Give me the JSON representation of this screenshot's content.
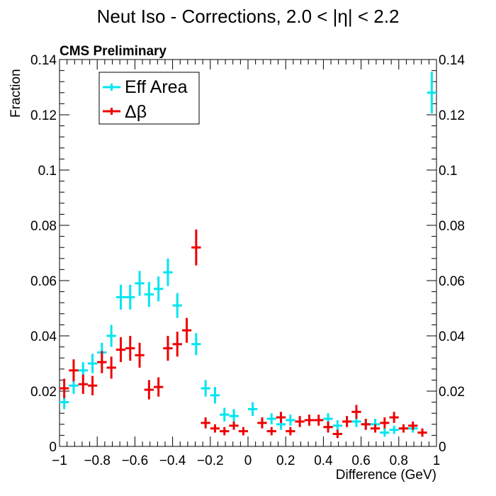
{
  "chart_data": {
    "type": "scatter",
    "title": "Neut Iso - Corrections, 2.0 < |η| < 2.2",
    "subtitle": "CMS Preliminary",
    "xlabel": "Difference (GeV)",
    "ylabel": "Fraction",
    "xlim": [
      -1,
      1
    ],
    "ylim": [
      0,
      0.14
    ],
    "bin_width": 0.05,
    "x_ticks": [
      -1,
      -0.8,
      -0.6,
      -0.4,
      -0.2,
      0,
      0.2,
      0.4,
      0.6,
      0.8,
      1
    ],
    "x_tick_labels": [
      "−1",
      "−0.8",
      "−0.6",
      "−0.4",
      "−0.2",
      "0",
      "0.2",
      "0.4",
      "0.6",
      "0.8",
      "1"
    ],
    "y_ticks": [
      0,
      0.02,
      0.04,
      0.06,
      0.08,
      0.1,
      0.12,
      0.14
    ],
    "y_tick_labels": [
      "0",
      "0.02",
      "0.04",
      "0.06",
      "0.08",
      "0.1",
      "0.12",
      "0.14"
    ],
    "legend_position": "top-left",
    "series": [
      {
        "name": "Eff Area",
        "color": "#00e5f0",
        "x": [
          -0.975,
          -0.925,
          -0.875,
          -0.825,
          -0.775,
          -0.725,
          -0.675,
          -0.625,
          -0.575,
          -0.525,
          -0.475,
          -0.425,
          -0.375,
          -0.275,
          -0.225,
          -0.175,
          -0.125,
          -0.075,
          0.025,
          0.125,
          0.175,
          0.225,
          0.325,
          0.425,
          0.475,
          0.575,
          0.625,
          0.675,
          0.725,
          0.775,
          0.825,
          0.875,
          0.925,
          0.975
        ],
        "values": [
          0.016,
          0.022,
          0.0275,
          0.03,
          0.034,
          0.04,
          0.054,
          0.054,
          0.059,
          0.055,
          0.057,
          0.063,
          0.051,
          0.037,
          0.021,
          0.0185,
          0.0115,
          0.011,
          0.0135,
          0.01,
          0.008,
          0.0095,
          0.0095,
          0.01,
          0.0075,
          0.009,
          0.008,
          0.008,
          0.005,
          0.006,
          0.0065,
          0.0065,
          0.005,
          0.128
        ],
        "errors": [
          0.0025,
          0.003,
          0.003,
          0.0035,
          0.0035,
          0.004,
          0.0045,
          0.0045,
          0.0045,
          0.0045,
          0.0045,
          0.005,
          0.0045,
          0.004,
          0.003,
          0.003,
          0.0025,
          0.0025,
          0.0025,
          0.002,
          0.002,
          0.002,
          0.002,
          0.002,
          0.002,
          0.002,
          0.002,
          0.002,
          0.0015,
          0.0015,
          0.0015,
          0.0015,
          0.0015,
          0.0075
        ]
      },
      {
        "name": "Δβ",
        "color": "#ee0000",
        "x": [
          -0.975,
          -0.925,
          -0.875,
          -0.825,
          -0.775,
          -0.725,
          -0.675,
          -0.625,
          -0.575,
          -0.525,
          -0.475,
          -0.425,
          -0.375,
          -0.325,
          -0.275,
          -0.225,
          -0.175,
          -0.125,
          -0.075,
          -0.025,
          0.075,
          0.125,
          0.175,
          0.225,
          0.275,
          0.325,
          0.375,
          0.425,
          0.475,
          0.525,
          0.575,
          0.625,
          0.675,
          0.725,
          0.775,
          0.825,
          0.875,
          0.925
        ],
        "values": [
          0.021,
          0.0275,
          0.0225,
          0.022,
          0.0305,
          0.0285,
          0.035,
          0.0355,
          0.033,
          0.0205,
          0.0215,
          0.0355,
          0.037,
          0.042,
          0.072,
          0.0085,
          0.0065,
          0.0055,
          0.0075,
          0.0055,
          0.0085,
          0.0055,
          0.0105,
          0.0055,
          0.009,
          0.0095,
          0.0095,
          0.007,
          0.0045,
          0.009,
          0.0125,
          0.008,
          0.0065,
          0.0085,
          0.0105,
          0.0065,
          0.0075,
          0.005
        ],
        "errors": [
          0.0035,
          0.004,
          0.0035,
          0.0035,
          0.004,
          0.004,
          0.0045,
          0.0045,
          0.0045,
          0.0035,
          0.0035,
          0.0045,
          0.0045,
          0.0045,
          0.0065,
          0.002,
          0.0015,
          0.0015,
          0.0015,
          0.0015,
          0.002,
          0.0015,
          0.002,
          0.0015,
          0.002,
          0.002,
          0.002,
          0.002,
          0.0015,
          0.002,
          0.0025,
          0.002,
          0.0015,
          0.002,
          0.002,
          0.0015,
          0.0015,
          0.0015
        ]
      }
    ]
  }
}
